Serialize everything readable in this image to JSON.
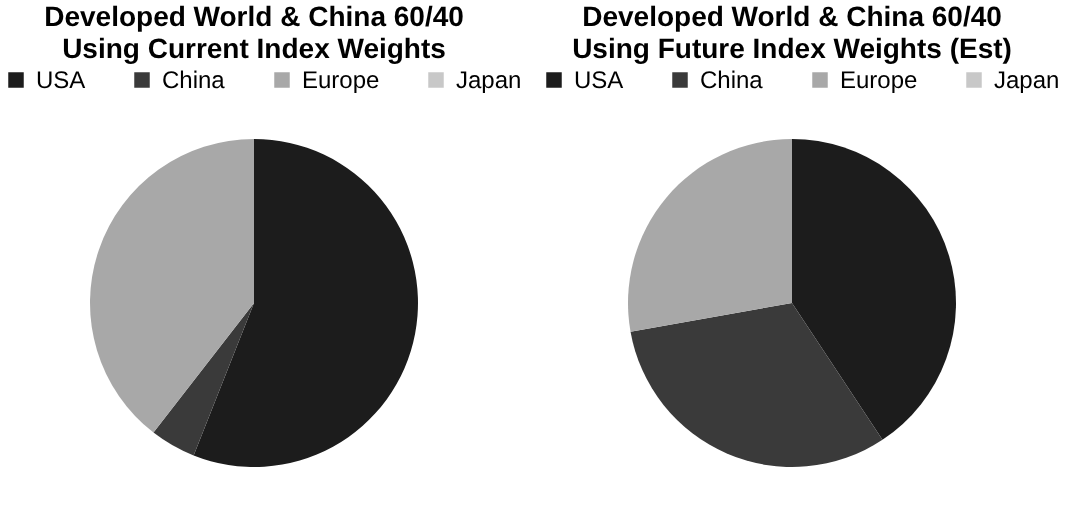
{
  "chart_data": [
    {
      "type": "pie",
      "title": "Developed World & China 60/40\nUsing Current Index Weights",
      "categories": [
        "USA",
        "China",
        "Europe",
        "Japan"
      ],
      "values": [
        56,
        4.5,
        39.5,
        0
      ],
      "colors": [
        "#1c1c1c",
        "#3a3a3a",
        "#a8a8a8",
        "#c8c8c8"
      ],
      "legend": "top"
    },
    {
      "type": "pie",
      "title": "Developed World & China 60/40\nUsing Future Index Weights (Est)",
      "categories": [
        "USA",
        "China",
        "Europe",
        "Japan"
      ],
      "values": [
        40.7,
        31.5,
        27.8,
        0
      ],
      "colors": [
        "#1c1c1c",
        "#3a3a3a",
        "#a8a8a8",
        "#c8c8c8"
      ],
      "legend": "top"
    }
  ]
}
